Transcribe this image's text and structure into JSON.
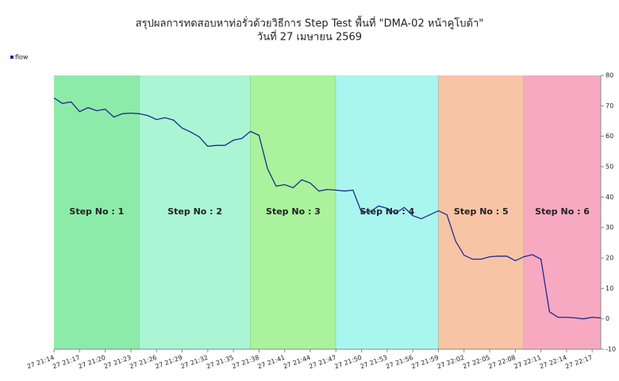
{
  "chart_data": {
    "type": "line",
    "title": "สรุปผลการทดสอบหาท่อรั่วด้วยวิธีการ Step Test พื้นที่ \"DMA-02 หน้าคูโบต้า\"",
    "subtitle": "วันที่ 27 เมษายน 2569",
    "x": [
      "27 21:14",
      "27 21:15",
      "27 21:16",
      "27 21:17",
      "27 21:18",
      "27 21:19",
      "27 21:20",
      "27 21:21",
      "27 21:22",
      "27 21:23",
      "27 21:24",
      "27 21:25",
      "27 21:26",
      "27 21:27",
      "27 21:28",
      "27 21:29",
      "27 21:30",
      "27 21:31",
      "27 21:32",
      "27 21:33",
      "27 21:34",
      "27 21:35",
      "27 21:36",
      "27 21:37",
      "27 21:38",
      "27 21:39",
      "27 21:40",
      "27 21:41",
      "27 21:42",
      "27 21:43",
      "27 21:44",
      "27 21:45",
      "27 21:46",
      "27 21:47",
      "27 21:48",
      "27 21:49",
      "27 21:50",
      "27 21:51",
      "27 21:52",
      "27 21:53",
      "27 21:54",
      "27 21:55",
      "27 21:56",
      "27 21:57",
      "27 21:58",
      "27 21:59",
      "27 22:00",
      "27 22:01",
      "27 22:02",
      "27 22:03",
      "27 22:04",
      "27 22:05",
      "27 22:06",
      "27 22:07",
      "27 22:08",
      "27 22:09",
      "27 22:10",
      "27 22:11",
      "27 22:12",
      "27 22:13",
      "27 22:14",
      "27 22:15",
      "27 22:16",
      "27 22:17",
      "27 22:18"
    ],
    "series": [
      {
        "name": "flow",
        "color": "#1f2a8c",
        "values": [
          72.6,
          70.8,
          71.3,
          68.1,
          69.4,
          68.4,
          68.9,
          66.3,
          67.4,
          67.6,
          67.4,
          66.8,
          65.5,
          66.1,
          65.3,
          62.7,
          61.4,
          59.8,
          56.7,
          57.0,
          57.0,
          58.7,
          59.3,
          61.6,
          60.3,
          49.3,
          43.6,
          44.1,
          43.1,
          45.7,
          44.6,
          42.0,
          42.5,
          42.3,
          42.0,
          42.3,
          35.0,
          35.2,
          37.1,
          36.3,
          34.7,
          36.6,
          33.9,
          32.9,
          34.2,
          35.5,
          34.2,
          25.6,
          20.9,
          19.6,
          19.6,
          20.4,
          20.6,
          20.6,
          19.1,
          20.4,
          21.1,
          19.6,
          2.3,
          0.5,
          0.5,
          0.3,
          0,
          0.5,
          0.3
        ]
      }
    ],
    "xlim": [
      "27 21:14",
      "27 22:18"
    ],
    "xticks": [
      "27 21:14",
      "27 21:17",
      "27 21:20",
      "27 21:23",
      "27 21:26",
      "27 21:29",
      "27 21:32",
      "27 21:35",
      "27 21:38",
      "27 21:41",
      "27 21:44",
      "27 21:47",
      "27 21:50",
      "27 21:53",
      "27 21:56",
      "27 21:59",
      "27 22:02",
      "27 22:05",
      "27 22:08",
      "27 22:11",
      "27 22:14",
      "27 22:17"
    ],
    "ylim": [
      -10,
      80
    ],
    "yticks": [
      -10,
      0,
      10,
      20,
      30,
      40,
      50,
      60,
      70,
      80
    ],
    "steps": [
      {
        "label": "Step No : 1",
        "start": "27 21:14",
        "end": "27 21:24",
        "color": "#8deba9"
      },
      {
        "label": "Step No : 2",
        "start": "27 21:24",
        "end": "27 21:37",
        "color": "#aaf5d3"
      },
      {
        "label": "Step No : 3",
        "start": "27 21:37",
        "end": "27 21:47",
        "color": "#aaf29c"
      },
      {
        "label": "Step No : 4",
        "start": "27 21:47",
        "end": "27 21:59",
        "color": "#a9f6ee"
      },
      {
        "label": "Step No : 5",
        "start": "27 21:59",
        "end": "27 22:09",
        "color": "#f8c4a6"
      },
      {
        "label": "Step No : 6",
        "start": "27 22:09",
        "end": "27 22:18",
        "color": "#f7a9c2"
      }
    ]
  }
}
